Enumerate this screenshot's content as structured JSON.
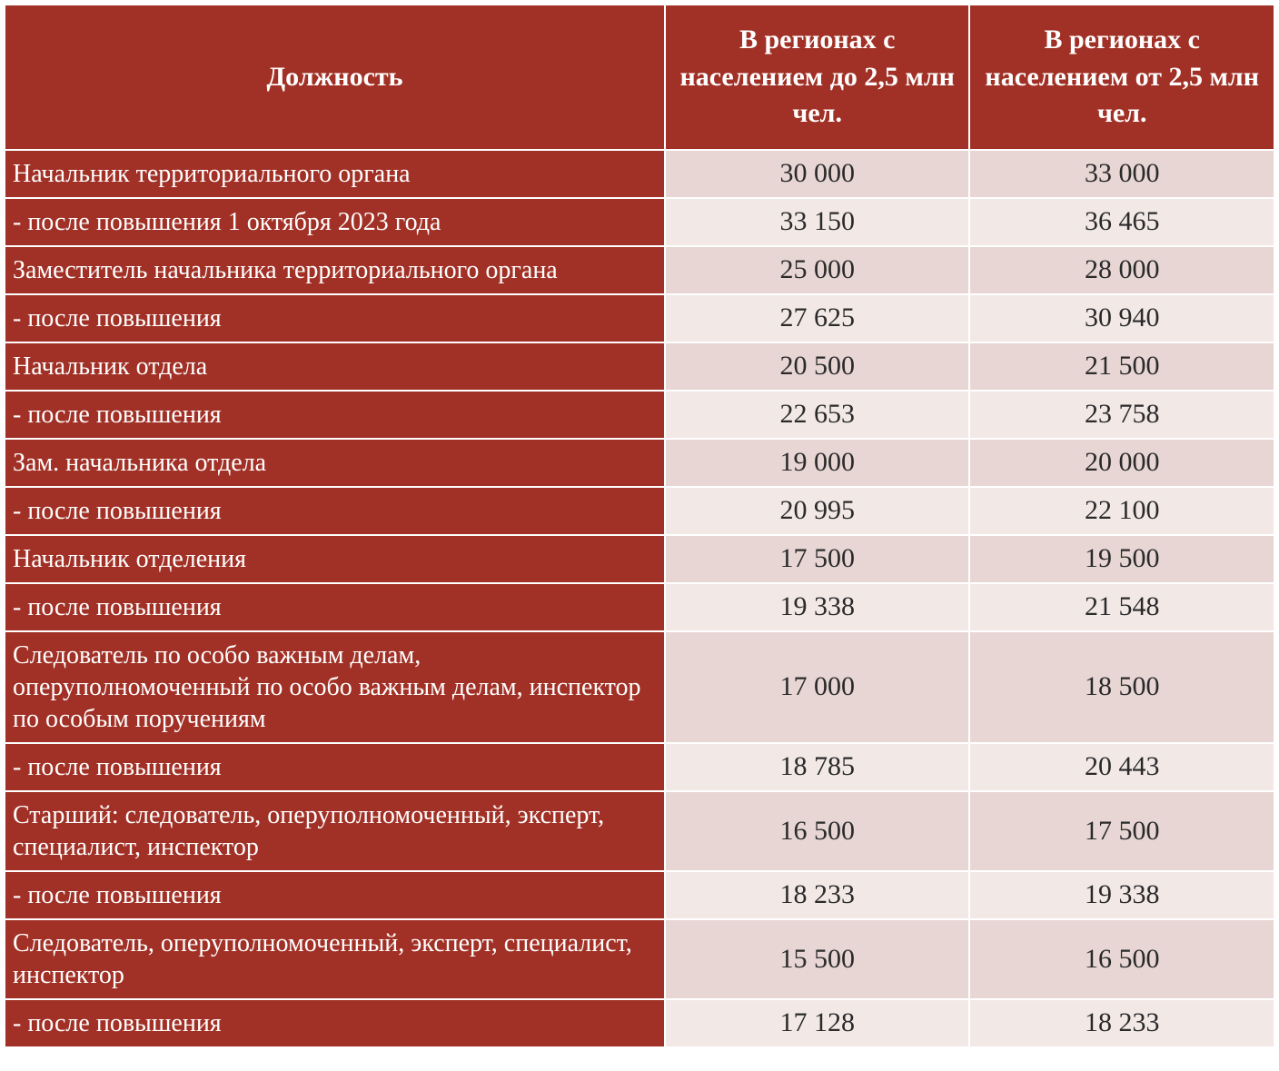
{
  "table": {
    "type": "table",
    "colors": {
      "header_bg": "#a13126",
      "header_text": "#ffffff",
      "label_bg": "#a13126",
      "label_text": "#ffffff",
      "value_text": "#2a2a2a",
      "band_a": "#e7d6d3",
      "band_b": "#f2e9e7",
      "border": "#ffffff"
    },
    "font": {
      "family": "serif",
      "header_size_pt": 22,
      "body_size_pt": 21
    },
    "column_widths_pct": [
      52,
      24,
      24
    ],
    "columns": [
      "Должность",
      "В регионах с населением до 2,5 млн чел.",
      "В регионах с населением от 2,5 млн чел."
    ],
    "rows": [
      {
        "label": "Начальник территориального органа",
        "v1": "30 000",
        "v2": "33 000"
      },
      {
        "label": "- после повышения 1 октября 2023 года",
        "v1": "33 150",
        "v2": "36 465"
      },
      {
        "label": "Заместитель начальника территориального органа",
        "v1": "25 000",
        "v2": "28 000"
      },
      {
        "label": "- после повышения",
        "v1": "27 625",
        "v2": "30 940"
      },
      {
        "label": "Начальник отдела",
        "v1": "20 500",
        "v2": "21 500"
      },
      {
        "label": "- после повышения",
        "v1": "22 653",
        "v2": "23 758"
      },
      {
        "label": "Зам. начальника отдела",
        "v1": "19 000",
        "v2": "20 000"
      },
      {
        "label": "- после повышения",
        "v1": "20 995",
        "v2": "22 100"
      },
      {
        "label": "Начальник отделения",
        "v1": "17 500",
        "v2": "19 500"
      },
      {
        "label": "- после повышения",
        "v1": "19 338",
        "v2": "21 548"
      },
      {
        "label": "Следователь по особо важным делам, оперуполномоченный по особо важным делам, инспектор по особым поручениям",
        "v1": "17 000",
        "v2": "18 500"
      },
      {
        "label": "- после повышения",
        "v1": "18 785",
        "v2": "20 443"
      },
      {
        "label": "Старший: следователь, оперуполномоченный, эксперт, специалист, инспектор",
        "v1": "16 500",
        "v2": "17 500"
      },
      {
        "label": "- после повышения",
        "v1": "18 233",
        "v2": "19 338"
      },
      {
        "label": "Следователь, оперуполномоченный, эксперт, специалист, инспектор",
        "v1": "15 500",
        "v2": "16 500"
      },
      {
        "label": "- после повышения",
        "v1": "17 128",
        "v2": "18 233"
      }
    ]
  }
}
